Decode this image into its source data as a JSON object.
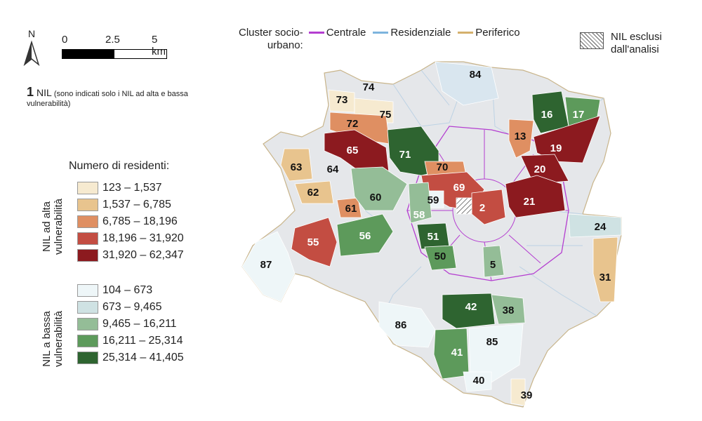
{
  "north": {
    "label": "N",
    "icon": "north-arrow-icon"
  },
  "scale_bar": {
    "labels": [
      "0",
      "2.5",
      "5 km"
    ]
  },
  "nil_legend": {
    "number": "1",
    "label": "NIL",
    "note": "(sono indicati solo i NIL ad alta e bassa vulnerabilità)"
  },
  "residents_legend": {
    "title": "Numero di residenti:",
    "high": {
      "label": "NIL ad alta vulnerabilità",
      "classes": [
        {
          "range": "123 – 1,537",
          "color": "#f6ead0"
        },
        {
          "range": "1,537 – 6,785",
          "color": "#e8c48e"
        },
        {
          "range": "6,785 – 18,196",
          "color": "#df8f62"
        },
        {
          "range": "18,196 – 31,920",
          "color": "#c34d42"
        },
        {
          "range": "31,920 – 62,347",
          "color": "#8c1a1f"
        }
      ]
    },
    "low": {
      "label": "NIL a bassa vulnerabilità",
      "classes": [
        {
          "range": "104 – 673",
          "color": "#eef6f8"
        },
        {
          "range": "673 – 9,465",
          "color": "#cfe2e3"
        },
        {
          "range": "9,465 – 16,211",
          "color": "#94bd97"
        },
        {
          "range": "16,211 – 25,314",
          "color": "#5d9a5b"
        },
        {
          "range": "25,314 – 41,405",
          "color": "#2e6430"
        }
      ]
    }
  },
  "cluster_legend": {
    "title_line1": "Cluster socio-",
    "title_line2": "urbano:",
    "items": [
      {
        "label": "Centrale",
        "color": "#b43ed0"
      },
      {
        "label": "Residenziale",
        "color": "#7db4dd"
      },
      {
        "label": "Periferico",
        "color": "#d5b06c"
      }
    ]
  },
  "excluded_legend": {
    "line1": "NIL esclusi",
    "line2": "dall'analisi"
  },
  "nil_labels": [
    {
      "id": "84",
      "fill": "#d9e6ef"
    },
    {
      "id": "74",
      "fill": "#e5e7ea"
    },
    {
      "id": "73",
      "fill": "#f6ead0"
    },
    {
      "id": "75",
      "fill": "#f6ead0"
    },
    {
      "id": "72",
      "fill": "#df8f62"
    },
    {
      "id": "16",
      "fill": "#2e6430"
    },
    {
      "id": "17",
      "fill": "#5d9a5b"
    },
    {
      "id": "13",
      "fill": "#df8f62"
    },
    {
      "id": "19",
      "fill": "#8c1a1f"
    },
    {
      "id": "65",
      "fill": "#8c1a1f"
    },
    {
      "id": "71",
      "fill": "#2e6430"
    },
    {
      "id": "20",
      "fill": "#8c1a1f"
    },
    {
      "id": "63",
      "fill": "#e8c48e"
    },
    {
      "id": "64",
      "fill": "#e5e7ea"
    },
    {
      "id": "70",
      "fill": "#df8f62"
    },
    {
      "id": "69",
      "fill": "#c34d42"
    },
    {
      "id": "60",
      "fill": "#94bd97"
    },
    {
      "id": "62",
      "fill": "#e8c48e"
    },
    {
      "id": "59",
      "fill": "#eef6f8"
    },
    {
      "id": "21",
      "fill": "#8c1a1f"
    },
    {
      "id": "2",
      "fill": "#c34d42"
    },
    {
      "id": "61",
      "fill": "#df8f62"
    },
    {
      "id": "58",
      "fill": "#94bd97"
    },
    {
      "id": "56",
      "fill": "#5d9a5b"
    },
    {
      "id": "51",
      "fill": "#2e6430"
    },
    {
      "id": "24",
      "fill": "#cfe2e3"
    },
    {
      "id": "55",
      "fill": "#c34d42"
    },
    {
      "id": "50",
      "fill": "#5d9a5b"
    },
    {
      "id": "87",
      "fill": "#eef6f8"
    },
    {
      "id": "5",
      "fill": "#94bd97"
    },
    {
      "id": "31",
      "fill": "#e8c48e"
    },
    {
      "id": "42",
      "fill": "#2e6430"
    },
    {
      "id": "38",
      "fill": "#94bd97"
    },
    {
      "id": "86",
      "fill": "#eef6f8"
    },
    {
      "id": "85",
      "fill": "#eef6f8"
    },
    {
      "id": "41",
      "fill": "#5d9a5b"
    },
    {
      "id": "40",
      "fill": "#eef6f8"
    },
    {
      "id": "39",
      "fill": "#f6ead0"
    }
  ],
  "excluded_nil_fill": "#ffffff",
  "base_fill": "#e5e7ea"
}
